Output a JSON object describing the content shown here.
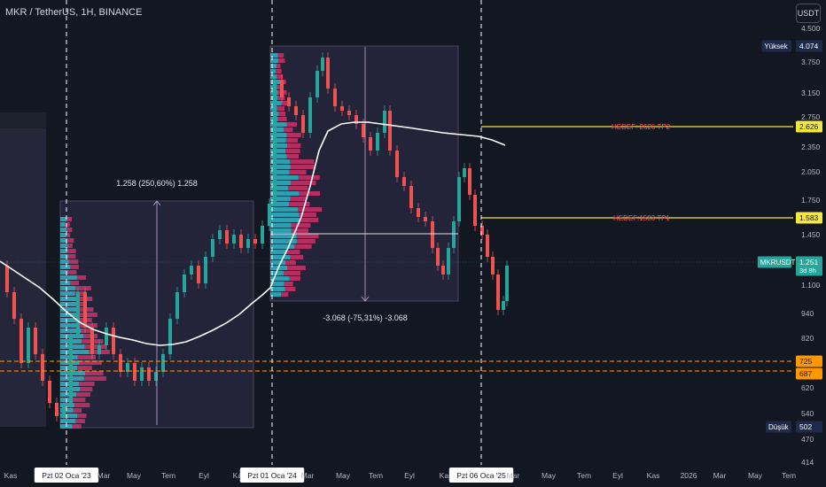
{
  "header": {
    "symbol_title": "MKR / TetherUS, 1H, BINANCE",
    "currency_button": "USDT"
  },
  "colors": {
    "background": "#131722",
    "up": "#26a69a",
    "down": "#ef5350",
    "profile_up": "#2fb5c7",
    "profile_down": "#d6336c",
    "target_line": "#f5e642",
    "level_line": "#ff9800",
    "ma_line": "#ffffff"
  },
  "price_axis": {
    "ticks": [
      "4.500",
      "3.750",
      "3.150",
      "2.750",
      "2.350",
      "2.050",
      "1.750",
      "1.450",
      "1.100",
      "940",
      "820",
      "620",
      "540",
      "470",
      "414"
    ],
    "tags": [
      {
        "name": "high-label",
        "label": "Yüksek",
        "value": "4.074"
      },
      {
        "name": "tp2-label",
        "value": "2.626"
      },
      {
        "name": "tp1-label",
        "value": "1.583"
      },
      {
        "name": "current-price-label",
        "label": "MKRUSDT",
        "value": "1.251",
        "sub": "3d 8h"
      },
      {
        "name": "level-725-label",
        "value": "725"
      },
      {
        "name": "level-687-label",
        "value": "687"
      },
      {
        "name": "low-label",
        "label": "Düşük",
        "value": "502"
      }
    ]
  },
  "time_axis": {
    "labels": [
      "Kas",
      "Pzt 02 Oca '23",
      "Mar",
      "May",
      "Tem",
      "Eyl",
      "Kas",
      "Pzt 01 Oca '24",
      "Mar",
      "May",
      "Tem",
      "Eyl",
      "Kas",
      "Pzt 06 Oca '25",
      "Mar",
      "May",
      "Tem",
      "Eyl",
      "Kas",
      "2026",
      "Mar",
      "May",
      "Tem"
    ],
    "highlighted": [
      "Pzt 02 Oca '23",
      "Pzt 01 Oca '24",
      "Pzt 06 Oca '25"
    ]
  },
  "annotations": {
    "measure_up": "1.258 (250,60%) 1.258",
    "measure_down": "-3.068 (-75,31%) -3.068",
    "tp2_text": "HEDEF: 2626 TP2",
    "tp1_text": "HEDEF:1583 TP1"
  },
  "chart_data": {
    "type": "candlestick",
    "symbol": "MKRUSDT",
    "high": 4074,
    "low": 502,
    "last": 1251,
    "targets": [
      2626,
      1583
    ],
    "support_levels": [
      725,
      687
    ],
    "measures": [
      {
        "from": 502,
        "to": 1760,
        "change": 1258,
        "percent": 250.6
      },
      {
        "from": 4074,
        "to": 1006,
        "change": -3068,
        "percent": -75.31
      }
    ]
  }
}
